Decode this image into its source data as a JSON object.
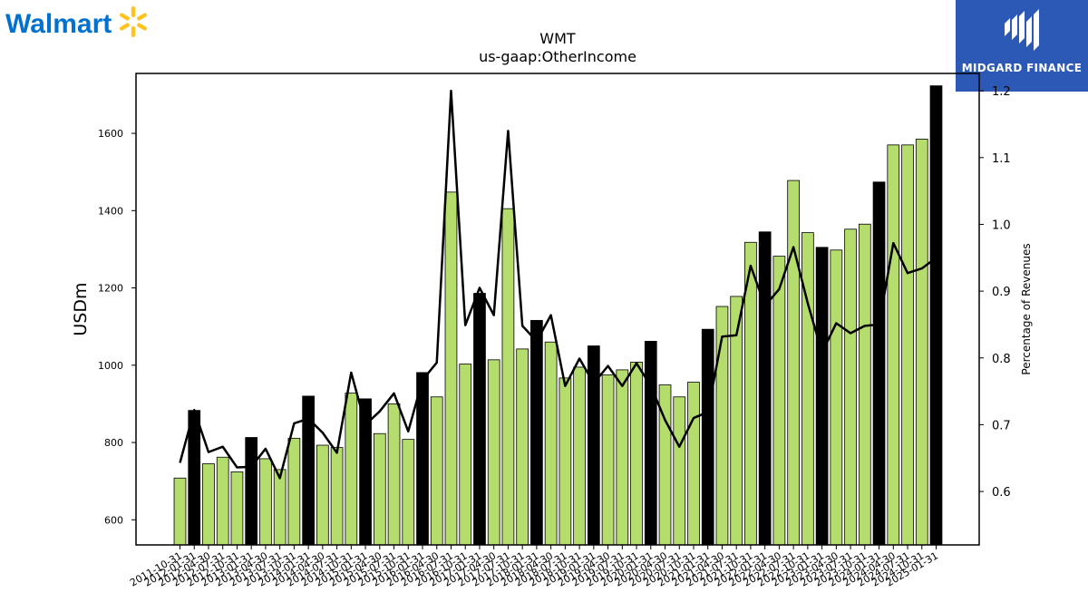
{
  "brand": {
    "name": "Walmart",
    "mark_color": "#ffc220",
    "text_color": "#0071ce"
  },
  "publisher": {
    "name": "MIDGARD FINANCE",
    "bg_color": "#2b59b5"
  },
  "chart_data": {
    "type": "bar",
    "title": "WMT",
    "subtitle": "us-gaap:OtherIncome",
    "ylabel": "USDm",
    "y2label": "Percentage of Revenues",
    "ylim": [
      535,
      1755
    ],
    "y2lim": [
      0.52,
      1.226
    ],
    "yticks": [
      600,
      800,
      1000,
      1200,
      1400,
      1600
    ],
    "y2ticks": [
      0.6,
      0.7,
      0.8,
      0.9,
      1.0,
      1.1,
      1.2
    ],
    "bar_colors": {
      "quarter": "#b5dd6e",
      "fiscal_year_end": "#000000"
    },
    "line_color": "#000000",
    "grid": false,
    "categories": [
      "2011-10-31",
      "2012-01-31",
      "2012-04-30",
      "2012-07-31",
      "2012-10-31",
      "2013-01-31",
      "2013-04-30",
      "2013-07-31",
      "2013-10-31",
      "2014-01-31",
      "2014-04-30",
      "2014-07-31",
      "2014-10-31",
      "2015-01-31",
      "2015-04-30",
      "2015-07-31",
      "2015-10-31",
      "2016-01-31",
      "2016-04-30",
      "2016-07-31",
      "2016-10-31",
      "2017-01-31",
      "2017-04-30",
      "2017-07-31",
      "2017-10-31",
      "2018-01-31",
      "2018-04-30",
      "2018-07-31",
      "2018-10-31",
      "2019-01-31",
      "2019-04-30",
      "2019-07-31",
      "2019-10-31",
      "2020-01-31",
      "2020-04-30",
      "2020-07-31",
      "2020-10-31",
      "2021-01-31",
      "2021-04-30",
      "2021-07-31",
      "2021-10-31",
      "2022-01-31",
      "2022-04-30",
      "2022-07-31",
      "2022-10-31",
      "2023-01-31",
      "2023-04-30",
      "2023-07-31",
      "2023-10-31",
      "2024-01-31",
      "2024-04-30",
      "2024-07-31",
      "2024-10-31",
      "2025-01-31"
    ],
    "series": [
      {
        "type": "bar",
        "axis": "left",
        "values": [
          708,
          883,
          745,
          762,
          724,
          813,
          758,
          730,
          811,
          920,
          793,
          787,
          928,
          913,
          823,
          900,
          808,
          981,
          918,
          1448,
          1003,
          1186,
          1014,
          1405,
          1042,
          1116,
          1060,
          967,
          995,
          1050,
          975,
          988,
          1008,
          1062,
          949,
          918,
          956,
          1093,
          1152,
          1178,
          1318,
          1345,
          1282,
          1478,
          1343,
          1305,
          1298,
          1352,
          1365,
          1474,
          1570,
          1570,
          1585,
          1723
        ]
      },
      {
        "type": "line",
        "axis": "right",
        "values": [
          0.643,
          0.722,
          0.659,
          0.667,
          0.636,
          0.637,
          0.664,
          0.62,
          0.702,
          0.709,
          0.688,
          0.658,
          0.778,
          0.7,
          0.72,
          0.747,
          0.69,
          0.767,
          0.793,
          1.2,
          0.849,
          0.905,
          0.864,
          1.14,
          0.848,
          0.825,
          0.864,
          0.758,
          0.799,
          0.762,
          0.788,
          0.758,
          0.792,
          0.758,
          0.707,
          0.667,
          0.71,
          0.719,
          0.832,
          0.834,
          0.938,
          0.878,
          0.903,
          0.966,
          0.882,
          0.808,
          0.852,
          0.837,
          0.848,
          0.85,
          0.972,
          0.927,
          0.934,
          0.95
        ]
      }
    ]
  }
}
